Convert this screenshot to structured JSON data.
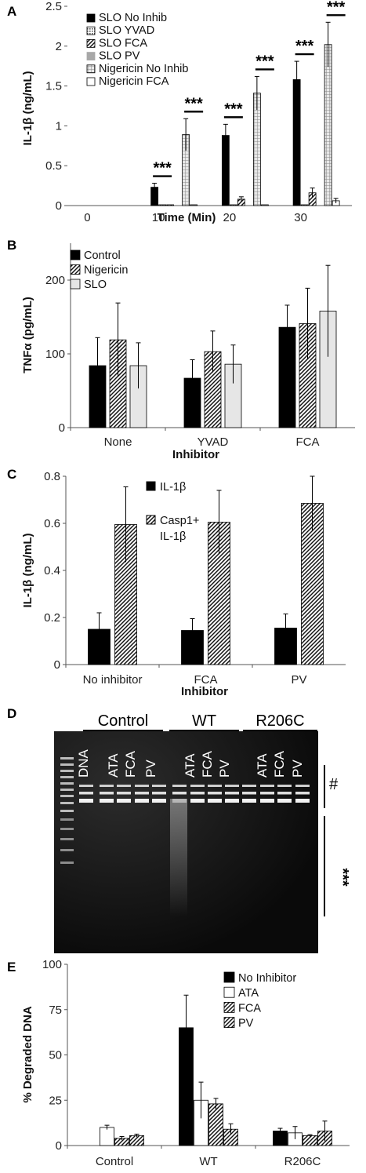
{
  "panels": {
    "A": {
      "letter": "A",
      "chart_data": {
        "type": "bar",
        "xlabel": "Time (Min)",
        "ylabel": "IL-1β (ng/mL)",
        "ylim": [
          0,
          2.5
        ],
        "yticks": [
          "0",
          "0.5",
          "1",
          "1.5",
          "2",
          "2.5"
        ],
        "categories": [
          "0",
          "10",
          "20",
          "30"
        ],
        "legend_position": "top-left",
        "series": [
          {
            "name": "SLO No Inhib",
            "values": [
              0,
              0.23,
              0.88,
              1.58
            ],
            "errors": [
              0,
              0.05,
              0.14,
              0.23
            ],
            "pattern": "black"
          },
          {
            "name": "SLO YVAD",
            "values": [
              0,
              0.01,
              0.01,
              0.01
            ],
            "errors": [
              0,
              0,
              0,
              0
            ],
            "pattern": "dots"
          },
          {
            "name": "SLO FCA",
            "values": [
              0,
              0.01,
              0.08,
              0.16
            ],
            "errors": [
              0,
              0,
              0.03,
              0.06
            ],
            "pattern": "diag"
          },
          {
            "name": "SLO PV",
            "values": [
              0,
              0,
              0,
              0
            ],
            "errors": [
              0,
              0,
              0,
              0
            ],
            "pattern": "gray"
          },
          {
            "name": "Nigericin No Inhib",
            "values": [
              0,
              0.89,
              1.41,
              2.02
            ],
            "errors": [
              0,
              0.2,
              0.21,
              0.28
            ],
            "pattern": "grid"
          },
          {
            "name": "Nigericin FCA",
            "values": [
              0,
              0.01,
              0.01,
              0.06
            ],
            "errors": [
              0,
              0,
              0,
              0.03
            ],
            "pattern": "white"
          }
        ],
        "annotations": [
          "***",
          "***",
          "***",
          "***",
          "***",
          "***"
        ]
      }
    },
    "B": {
      "letter": "B",
      "chart_data": {
        "type": "bar",
        "xlabel": "Inhibitor",
        "ylabel": "TNFα (pg/mL)",
        "ylim": [
          0,
          250
        ],
        "yticks": [
          "0",
          "100",
          "200"
        ],
        "categories": [
          "None",
          "YVAD",
          "FCA"
        ],
        "legend_position": "top-left",
        "series": [
          {
            "name": "Control",
            "values": [
              84,
              67,
              136
            ],
            "errors": [
              38,
              25,
              30
            ],
            "pattern": "black"
          },
          {
            "name": "Nigericin",
            "values": [
              119,
              103,
              141
            ],
            "errors": [
              50,
              28,
              48
            ],
            "pattern": "diag"
          },
          {
            "name": "SLO",
            "values": [
              84,
              86,
              158
            ],
            "errors": [
              31,
              26,
              62
            ],
            "pattern": "lightgray"
          }
        ]
      }
    },
    "C": {
      "letter": "C",
      "chart_data": {
        "type": "bar",
        "xlabel": "Inhibitor",
        "ylabel": "IL-1β (ng/mL)",
        "ylim": [
          0,
          0.8
        ],
        "yticks": [
          "0",
          "0.2",
          "0.4",
          "0.6",
          "0.8"
        ],
        "categories": [
          "No inhibitor",
          "FCA",
          "PV"
        ],
        "legend_position": "top-center",
        "series": [
          {
            "name": "IL-1β",
            "values": [
              0.15,
              0.145,
              0.155
            ],
            "errors": [
              0.07,
              0.05,
              0.06
            ],
            "pattern": "black"
          },
          {
            "name": "Casp1+ IL-1β",
            "name_lines": [
              "Casp1+",
              "IL-1β"
            ],
            "values": [
              0.595,
              0.605,
              0.685
            ],
            "errors": [
              0.16,
              0.135,
              0.115
            ],
            "pattern": "diag"
          }
        ]
      }
    },
    "D": {
      "letter": "D",
      "groups": [
        "Control",
        "WT",
        "R206C"
      ],
      "lanes": [
        "DNA",
        "ATA",
        "FCA",
        "PV",
        "ATA",
        "FCA",
        "PV",
        "ATA",
        "FCA",
        "PV"
      ],
      "marker_hash": "#",
      "marker_stars": "***"
    },
    "E": {
      "letter": "E",
      "chart_data": {
        "type": "bar",
        "xlabel": "",
        "ylabel": "% Degraded DNA",
        "ylim": [
          0,
          100
        ],
        "yticks": [
          "0",
          "25",
          "50",
          "75",
          "100"
        ],
        "categories": [
          "Control",
          "WT",
          "R206C"
        ],
        "legend_position": "top-right",
        "series": [
          {
            "name": "No Inhibitor",
            "values": [
              null,
              65,
              8
            ],
            "errors": [
              0,
              18,
              1.5
            ],
            "pattern": "black"
          },
          {
            "name": "ATA",
            "values": [
              10,
              25,
              7
            ],
            "errors": [
              1.2,
              10,
              3.5
            ],
            "pattern": "white"
          },
          {
            "name": "FCA",
            "values": [
              4,
              23,
              5.5
            ],
            "errors": [
              1,
              3,
              0.5
            ],
            "pattern": "diag"
          },
          {
            "name": "PV",
            "values": [
              5.5,
              9,
              8
            ],
            "errors": [
              0.8,
              3,
              5.5
            ],
            "pattern": "diag"
          }
        ]
      }
    }
  }
}
